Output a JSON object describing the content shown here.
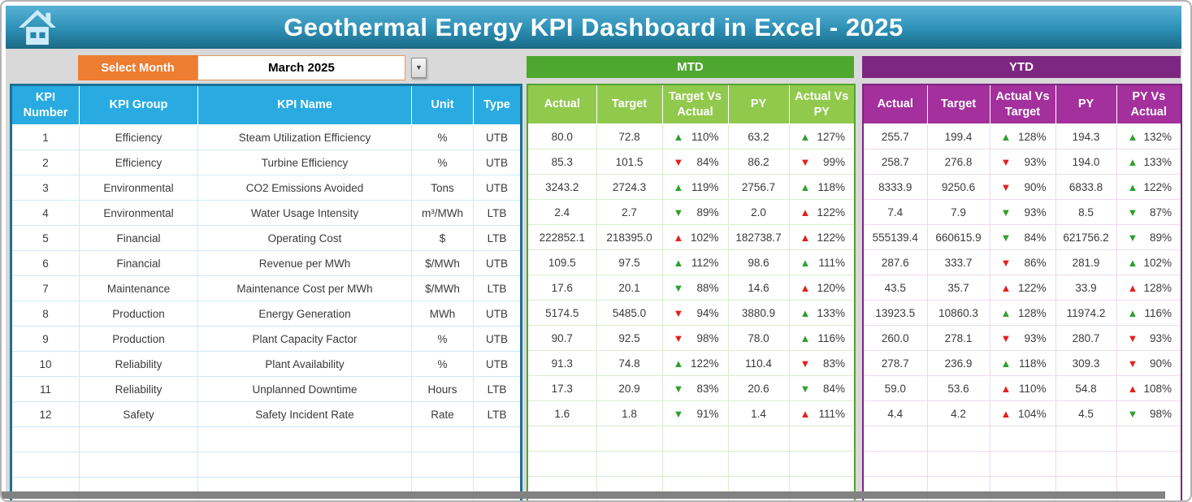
{
  "header": {
    "title": "Geothermal Energy KPI Dashboard in Excel - 2025"
  },
  "controls": {
    "select_month_label": "Select Month",
    "selected_month": "March 2025"
  },
  "sections": {
    "mtd_label": "MTD",
    "ytd_label": "YTD"
  },
  "kpi_table": {
    "info_headers": [
      "KPI Number",
      "KPI Group",
      "KPI Name",
      "Unit",
      "Type"
    ],
    "mtd_headers": [
      "Actual",
      "Target",
      "Target Vs Actual",
      "PY",
      "Actual Vs PY"
    ],
    "ytd_headers": [
      "Actual",
      "Target",
      "Actual Vs Target",
      "PY",
      "PY Vs Actual"
    ],
    "empty_row_count": 3,
    "rows": [
      {
        "number": "1",
        "group": "Efficiency",
        "name": "Steam Utilization Efficiency",
        "unit": "%",
        "type": "UTB",
        "mtd": {
          "actual": "80.0",
          "target": "72.8",
          "target_vs_actual": {
            "value": "110%",
            "direction": "up",
            "color": "green"
          },
          "py": "63.2",
          "actual_vs_py": {
            "value": "127%",
            "direction": "up",
            "color": "green"
          }
        },
        "ytd": {
          "actual": "255.7",
          "target": "199.4",
          "actual_vs_target": {
            "value": "128%",
            "direction": "up",
            "color": "green"
          },
          "py": "194.3",
          "py_vs_actual": {
            "value": "132%",
            "direction": "up",
            "color": "green"
          }
        }
      },
      {
        "number": "2",
        "group": "Efficiency",
        "name": "Turbine Efficiency",
        "unit": "%",
        "type": "UTB",
        "mtd": {
          "actual": "85.3",
          "target": "101.5",
          "target_vs_actual": {
            "value": "84%",
            "direction": "down",
            "color": "red"
          },
          "py": "86.2",
          "actual_vs_py": {
            "value": "99%",
            "direction": "down",
            "color": "red"
          }
        },
        "ytd": {
          "actual": "258.7",
          "target": "276.8",
          "actual_vs_target": {
            "value": "93%",
            "direction": "down",
            "color": "red"
          },
          "py": "194.0",
          "py_vs_actual": {
            "value": "133%",
            "direction": "up",
            "color": "green"
          }
        }
      },
      {
        "number": "3",
        "group": "Environmental",
        "name": "CO2 Emissions Avoided",
        "unit": "Tons",
        "type": "UTB",
        "mtd": {
          "actual": "3243.2",
          "target": "2724.3",
          "target_vs_actual": {
            "value": "119%",
            "direction": "up",
            "color": "green"
          },
          "py": "2756.7",
          "actual_vs_py": {
            "value": "118%",
            "direction": "up",
            "color": "green"
          }
        },
        "ytd": {
          "actual": "8333.9",
          "target": "9250.6",
          "actual_vs_target": {
            "value": "90%",
            "direction": "down",
            "color": "red"
          },
          "py": "6833.8",
          "py_vs_actual": {
            "value": "122%",
            "direction": "up",
            "color": "green"
          }
        }
      },
      {
        "number": "4",
        "group": "Environmental",
        "name": "Water Usage Intensity",
        "unit": "m³/MWh",
        "type": "LTB",
        "mtd": {
          "actual": "2.4",
          "target": "2.7",
          "target_vs_actual": {
            "value": "89%",
            "direction": "down",
            "color": "green"
          },
          "py": "2.0",
          "actual_vs_py": {
            "value": "122%",
            "direction": "up",
            "color": "red"
          }
        },
        "ytd": {
          "actual": "7.4",
          "target": "7.9",
          "actual_vs_target": {
            "value": "93%",
            "direction": "down",
            "color": "green"
          },
          "py": "8.5",
          "py_vs_actual": {
            "value": "87%",
            "direction": "down",
            "color": "green"
          }
        }
      },
      {
        "number": "5",
        "group": "Financial",
        "name": "Operating Cost",
        "unit": "$",
        "type": "LTB",
        "mtd": {
          "actual": "222852.1",
          "target": "218395.0",
          "target_vs_actual": {
            "value": "102%",
            "direction": "up",
            "color": "red"
          },
          "py": "182738.7",
          "actual_vs_py": {
            "value": "122%",
            "direction": "up",
            "color": "red"
          }
        },
        "ytd": {
          "actual": "555139.4",
          "target": "660615.9",
          "actual_vs_target": {
            "value": "84%",
            "direction": "down",
            "color": "green"
          },
          "py": "621756.2",
          "py_vs_actual": {
            "value": "89%",
            "direction": "down",
            "color": "green"
          }
        }
      },
      {
        "number": "6",
        "group": "Financial",
        "name": "Revenue per MWh",
        "unit": "$/MWh",
        "type": "UTB",
        "mtd": {
          "actual": "109.5",
          "target": "97.5",
          "target_vs_actual": {
            "value": "112%",
            "direction": "up",
            "color": "green"
          },
          "py": "98.6",
          "actual_vs_py": {
            "value": "111%",
            "direction": "up",
            "color": "green"
          }
        },
        "ytd": {
          "actual": "287.6",
          "target": "333.7",
          "actual_vs_target": {
            "value": "86%",
            "direction": "down",
            "color": "red"
          },
          "py": "281.9",
          "py_vs_actual": {
            "value": "102%",
            "direction": "up",
            "color": "green"
          }
        }
      },
      {
        "number": "7",
        "group": "Maintenance",
        "name": "Maintenance Cost per MWh",
        "unit": "$/MWh",
        "type": "LTB",
        "mtd": {
          "actual": "17.6",
          "target": "20.1",
          "target_vs_actual": {
            "value": "88%",
            "direction": "down",
            "color": "green"
          },
          "py": "14.6",
          "actual_vs_py": {
            "value": "120%",
            "direction": "up",
            "color": "red"
          }
        },
        "ytd": {
          "actual": "43.5",
          "target": "35.7",
          "actual_vs_target": {
            "value": "122%",
            "direction": "up",
            "color": "red"
          },
          "py": "33.9",
          "py_vs_actual": {
            "value": "128%",
            "direction": "up",
            "color": "red"
          }
        }
      },
      {
        "number": "8",
        "group": "Production",
        "name": "Energy Generation",
        "unit": "MWh",
        "type": "UTB",
        "mtd": {
          "actual": "5174.5",
          "target": "5485.0",
          "target_vs_actual": {
            "value": "94%",
            "direction": "down",
            "color": "red"
          },
          "py": "3880.9",
          "actual_vs_py": {
            "value": "133%",
            "direction": "up",
            "color": "green"
          }
        },
        "ytd": {
          "actual": "13923.5",
          "target": "10860.3",
          "actual_vs_target": {
            "value": "128%",
            "direction": "up",
            "color": "green"
          },
          "py": "11974.2",
          "py_vs_actual": {
            "value": "116%",
            "direction": "up",
            "color": "green"
          }
        }
      },
      {
        "number": "9",
        "group": "Production",
        "name": "Plant Capacity Factor",
        "unit": "%",
        "type": "UTB",
        "mtd": {
          "actual": "90.7",
          "target": "92.5",
          "target_vs_actual": {
            "value": "98%",
            "direction": "down",
            "color": "red"
          },
          "py": "78.0",
          "actual_vs_py": {
            "value": "116%",
            "direction": "up",
            "color": "green"
          }
        },
        "ytd": {
          "actual": "260.0",
          "target": "278.1",
          "actual_vs_target": {
            "value": "93%",
            "direction": "down",
            "color": "red"
          },
          "py": "280.7",
          "py_vs_actual": {
            "value": "93%",
            "direction": "down",
            "color": "red"
          }
        }
      },
      {
        "number": "10",
        "group": "Reliability",
        "name": "Plant Availability",
        "unit": "%",
        "type": "UTB",
        "mtd": {
          "actual": "91.3",
          "target": "74.8",
          "target_vs_actual": {
            "value": "122%",
            "direction": "up",
            "color": "green"
          },
          "py": "110.4",
          "actual_vs_py": {
            "value": "83%",
            "direction": "down",
            "color": "red"
          }
        },
        "ytd": {
          "actual": "278.7",
          "target": "236.9",
          "actual_vs_target": {
            "value": "118%",
            "direction": "up",
            "color": "green"
          },
          "py": "309.3",
          "py_vs_actual": {
            "value": "90%",
            "direction": "down",
            "color": "red"
          }
        }
      },
      {
        "number": "11",
        "group": "Reliability",
        "name": "Unplanned Downtime",
        "unit": "Hours",
        "type": "LTB",
        "mtd": {
          "actual": "17.3",
          "target": "20.9",
          "target_vs_actual": {
            "value": "83%",
            "direction": "down",
            "color": "green"
          },
          "py": "20.6",
          "actual_vs_py": {
            "value": "84%",
            "direction": "down",
            "color": "green"
          }
        },
        "ytd": {
          "actual": "59.0",
          "target": "53.6",
          "actual_vs_target": {
            "value": "110%",
            "direction": "up",
            "color": "red"
          },
          "py": "54.8",
          "py_vs_actual": {
            "value": "108%",
            "direction": "up",
            "color": "red"
          }
        }
      },
      {
        "number": "12",
        "group": "Safety",
        "name": "Safety Incident Rate",
        "unit": "Rate",
        "type": "LTB",
        "mtd": {
          "actual": "1.6",
          "target": "1.8",
          "target_vs_actual": {
            "value": "91%",
            "direction": "down",
            "color": "green"
          },
          "py": "1.4",
          "actual_vs_py": {
            "value": "111%",
            "direction": "up",
            "color": "red"
          }
        },
        "ytd": {
          "actual": "4.4",
          "target": "4.2",
          "actual_vs_target": {
            "value": "104%",
            "direction": "up",
            "color": "red"
          },
          "py": "4.5",
          "py_vs_actual": {
            "value": "98%",
            "direction": "down",
            "color": "green"
          }
        }
      }
    ]
  },
  "colors": {
    "banner_top": "#58b1d5",
    "banner_bottom": "#1a6a85",
    "accent_orange": "#ED7D31",
    "table_header_blue": "#29ABE2",
    "mtd_band_green": "#4EA72E",
    "mtd_header_green": "#91C94D",
    "ytd_band_purple": "#7D2682",
    "ytd_header_purple": "#A3309C",
    "arrow_green": "#2EA02E",
    "arrow_red": "#E32119",
    "background_gray": "#D9D9D9"
  }
}
